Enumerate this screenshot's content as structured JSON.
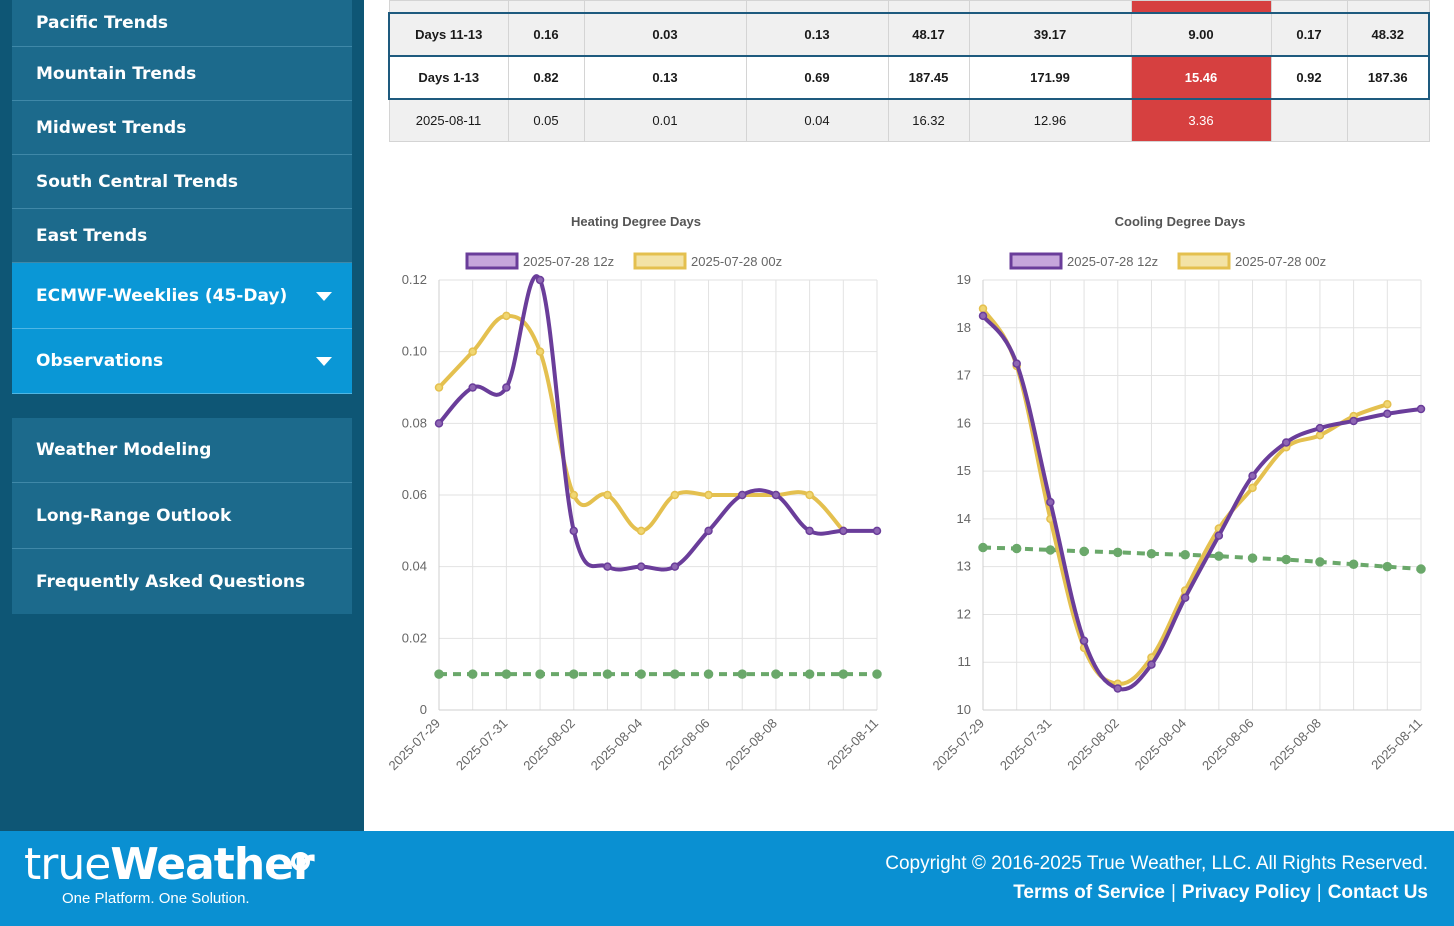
{
  "sidebar": {
    "items": [
      {
        "label": "Pacific Trends"
      },
      {
        "label": "Mountain Trends"
      },
      {
        "label": "Midwest Trends"
      },
      {
        "label": "South Central Trends"
      },
      {
        "label": "East Trends"
      },
      {
        "label": "ECMWF-Weeklies (45-Day)"
      },
      {
        "label": "Observations"
      },
      {
        "label": "Weather Modeling"
      },
      {
        "label": "Long-Range Outlook"
      },
      {
        "label": "Frequently Asked Questions"
      }
    ]
  },
  "table": {
    "rows": [
      {
        "cells": [
          "Days 11-13",
          "0.16",
          "0.03",
          "0.13",
          "48.17",
          "39.17",
          "9.00",
          "0.17",
          "48.32"
        ]
      },
      {
        "cells": [
          "Days 1-13",
          "0.82",
          "0.13",
          "0.69",
          "187.45",
          "171.99",
          "15.46",
          "0.92",
          "187.36"
        ]
      },
      {
        "cells": [
          "2025-08-11",
          "0.05",
          "0.01",
          "0.04",
          "16.32",
          "12.96",
          "3.36",
          "",
          ""
        ]
      }
    ]
  },
  "charts": {
    "hdd": {
      "title": "Heating Degree Days",
      "legend": [
        "2025-07-28 12z",
        "2025-07-28 00z"
      ],
      "yticks": [
        "0.12",
        "0.10",
        "0.08",
        "0.06",
        "0.04",
        "0.02",
        "0"
      ],
      "xticks": [
        "2025-07-29",
        "2025-07-31",
        "2025-08-02",
        "2025-08-04",
        "2025-08-06",
        "2025-08-08",
        "2025-08-11"
      ]
    },
    "cdd": {
      "title": "Cooling Degree Days",
      "legend": [
        "2025-07-28 12z",
        "2025-07-28 00z"
      ],
      "yticks": [
        "19",
        "18",
        "17",
        "16",
        "15",
        "14",
        "13",
        "12",
        "11",
        "10"
      ],
      "xticks": [
        "2025-07-29",
        "2025-07-31",
        "2025-08-02",
        "2025-08-04",
        "2025-08-06",
        "2025-08-08",
        "2025-08-11"
      ]
    }
  },
  "chart_data": [
    {
      "type": "line",
      "title": "Heating Degree Days",
      "x": [
        "2025-07-29",
        "2025-07-30",
        "2025-07-31",
        "2025-08-01",
        "2025-08-02",
        "2025-08-03",
        "2025-08-04",
        "2025-08-05",
        "2025-08-06",
        "2025-08-07",
        "2025-08-08",
        "2025-08-09",
        "2025-08-10",
        "2025-08-11"
      ],
      "ylim": [
        0,
        0.12
      ],
      "series": [
        {
          "name": "2025-07-28 12z",
          "color": "#6a3d9a",
          "values": [
            0.08,
            0.09,
            0.09,
            0.12,
            0.05,
            0.04,
            0.04,
            0.04,
            0.05,
            0.06,
            0.06,
            0.05,
            0.05,
            0.05
          ]
        },
        {
          "name": "2025-07-28 00z",
          "color": "#e4c04f",
          "values": [
            0.09,
            0.1,
            0.11,
            0.1,
            0.06,
            0.06,
            0.05,
            0.06,
            0.06,
            0.06,
            0.06,
            0.06,
            0.05,
            null
          ]
        },
        {
          "color": "#6aa86a",
          "dashed": true,
          "values": [
            0.01,
            0.01,
            0.01,
            0.01,
            0.01,
            0.01,
            0.01,
            0.01,
            0.01,
            0.01,
            0.01,
            0.01,
            0.01,
            0.01
          ]
        }
      ]
    },
    {
      "type": "line",
      "title": "Cooling Degree Days",
      "x": [
        "2025-07-29",
        "2025-07-30",
        "2025-07-31",
        "2025-08-01",
        "2025-08-02",
        "2025-08-03",
        "2025-08-04",
        "2025-08-05",
        "2025-08-06",
        "2025-08-07",
        "2025-08-08",
        "2025-08-09",
        "2025-08-10",
        "2025-08-11"
      ],
      "ylim": [
        10,
        19
      ],
      "series": [
        {
          "name": "2025-07-28 12z",
          "color": "#6a3d9a",
          "values": [
            18.25,
            17.25,
            14.35,
            11.45,
            10.45,
            10.95,
            12.35,
            13.65,
            14.9,
            15.6,
            15.9,
            16.05,
            16.2,
            16.3
          ]
        },
        {
          "name": "2025-07-28 00z",
          "color": "#e4c04f",
          "values": [
            18.4,
            17.2,
            14.0,
            11.3,
            10.55,
            11.1,
            12.5,
            13.8,
            14.65,
            15.5,
            15.75,
            16.15,
            16.4,
            null
          ]
        },
        {
          "color": "#6aa86a",
          "dashed": true,
          "values": [
            13.4,
            13.38,
            13.35,
            13.32,
            13.3,
            13.27,
            13.25,
            13.22,
            13.18,
            13.15,
            13.1,
            13.05,
            13.0,
            12.95
          ]
        }
      ]
    }
  ],
  "footer": {
    "logo_light": "true",
    "logo_heavy": "Weather",
    "tagline": "One Platform. One Solution.",
    "copyright": "Copyright © 2016-2025 True Weather, LLC. All Rights Reserved.",
    "links": [
      "Terms of Service",
      "Privacy Policy",
      "Contact Us"
    ],
    "separator": "|"
  }
}
